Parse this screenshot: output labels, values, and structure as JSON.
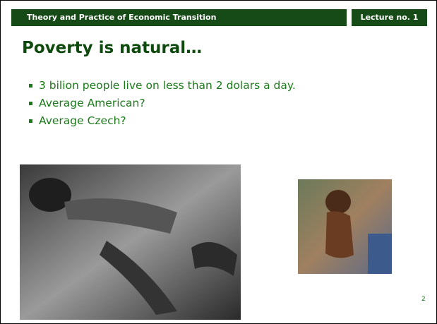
{
  "header": {
    "title": "Theory and Practice of Economic Transition",
    "lecture": "Lecture no. 1"
  },
  "slide": {
    "title": "Poverty is natural…",
    "bullets": [
      "3 bilion people live on less than 2 dolars a day.",
      "Average American?",
      "Average Czech?"
    ],
    "page_number": "2"
  }
}
